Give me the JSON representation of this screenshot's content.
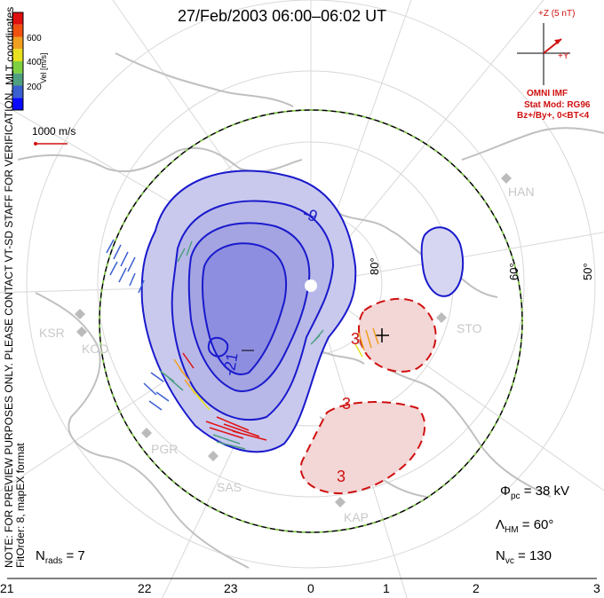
{
  "title": "27/Feb/2003 06:00–06:02 UT",
  "coords_label": "MLT coordinates",
  "velocity_scale": {
    "label": "Vel [m/s]",
    "ticks": [
      "600",
      "400",
      "200"
    ],
    "colors": [
      "#0a0aff",
      "#3a5fd0",
      "#4fa080",
      "#7fd040",
      "#e8e020",
      "#f0a020",
      "#f05010",
      "#e01010"
    ]
  },
  "vector_scale_label": "1000 m/s",
  "note": "NOTE: FOR PREVIEW PURPOSES ONLY. PLEASE CONTACT VT-SD STAFF FOR VERIFICATION.",
  "fit_order": "FitOrder: 8, mapEX format",
  "imf": {
    "plus_z": "+Z (5 nT)",
    "plus_y": "+Y",
    "source": "OMNI IMF",
    "stat_mod": "Stat Mod: RG96",
    "condition": "Bz+/By+, 0<BT<4"
  },
  "stats": {
    "n_rads": "N",
    "n_rads_sub": "rads",
    "n_rads_value": " = 7",
    "phi": "Φ",
    "phi_sub": "pc",
    "phi_value": " = 38 kV",
    "lambda": "Λ",
    "lambda_sub": "HM",
    "lambda_value": " = 60°",
    "nvc": "N",
    "nvc_sub": "vc",
    "nvc_value": " = 130"
  },
  "mlt_axis": [
    "21",
    "22",
    "23",
    "0",
    "1",
    "2",
    "3"
  ],
  "latitude_labels": [
    "80°",
    "60°",
    "50°"
  ],
  "sites": [
    "HAN",
    "STO",
    "KSR",
    "KOD",
    "PGR",
    "SAS",
    "KAP"
  ],
  "contours": [
    {
      "label": "-9",
      "sign": "negative"
    },
    {
      "label": "-21",
      "sign": "negative"
    },
    {
      "label": "3",
      "sign": "positive"
    },
    {
      "label": "3",
      "sign": "positive"
    },
    {
      "label": "3",
      "sign": "positive"
    }
  ],
  "colors": {
    "negative": "#1a1acc",
    "positive": "#d01010",
    "neg_fill": "#c9c9ee",
    "pos_fill": "#f3d6d6",
    "boundary_dash": "#80d040"
  }
}
